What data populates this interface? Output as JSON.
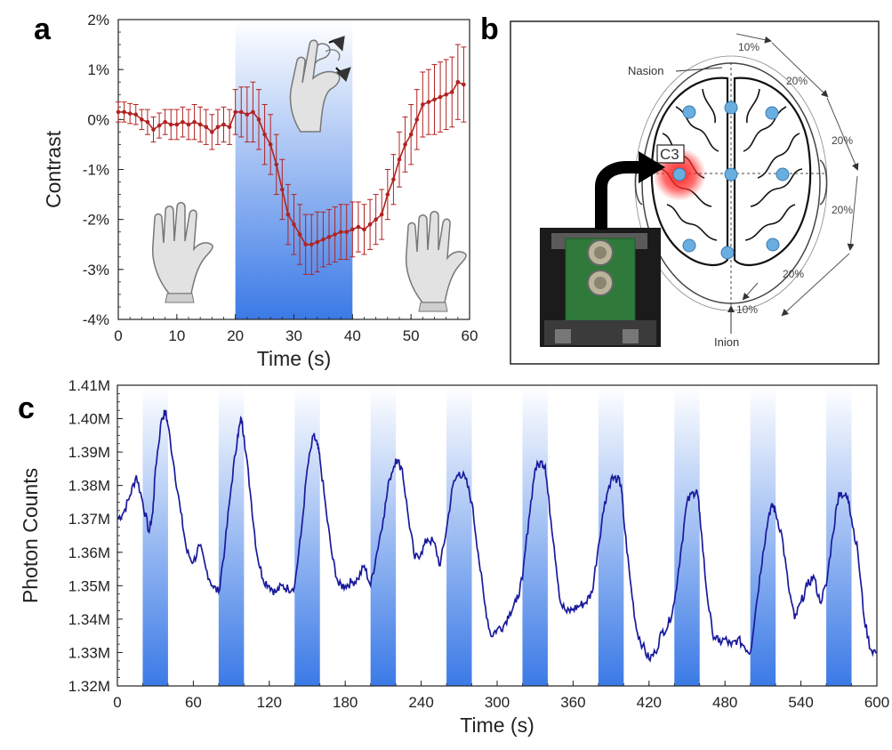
{
  "panels": {
    "a": "a",
    "b": "b",
    "c": "c"
  },
  "chart_data": [
    {
      "panel": "a",
      "type": "line",
      "xlabel": "Time (s)",
      "ylabel": "Contrast",
      "xlim": [
        0,
        60
      ],
      "ylim": [
        -4,
        2
      ],
      "x_ticks": [
        "0",
        "10",
        "20",
        "30",
        "40",
        "50",
        "60"
      ],
      "y_ticks": [
        "2%",
        "1%",
        "0%",
        "-1%",
        "-2%",
        "-3%",
        "-4%"
      ],
      "shaded_interval": [
        20,
        40
      ],
      "error_bars": true,
      "color": "#b22222",
      "series": [
        {
          "x": [
            0,
            1,
            2,
            3,
            4,
            5,
            6,
            7,
            8,
            9,
            10,
            11,
            12,
            13,
            14,
            15,
            16,
            17,
            18,
            19,
            20,
            21,
            22,
            23,
            24,
            25,
            26,
            27,
            28,
            29,
            30,
            31,
            32,
            33,
            34,
            35,
            36,
            37,
            38,
            39,
            40,
            41,
            42,
            43,
            44,
            45,
            46,
            47,
            48,
            49,
            50,
            51,
            52,
            53,
            54,
            55,
            56,
            57,
            58,
            59
          ],
          "y": [
            0.15,
            0.15,
            0.12,
            0.1,
            0.0,
            -0.05,
            -0.2,
            -0.12,
            -0.05,
            -0.1,
            -0.1,
            -0.05,
            -0.1,
            -0.05,
            -0.1,
            -0.15,
            -0.25,
            -0.15,
            -0.1,
            -0.15,
            0.15,
            0.15,
            0.1,
            0.15,
            0.0,
            -0.3,
            -0.5,
            -0.9,
            -1.4,
            -1.9,
            -2.1,
            -2.3,
            -2.5,
            -2.5,
            -2.45,
            -2.4,
            -2.35,
            -2.3,
            -2.25,
            -2.25,
            -2.2,
            -2.15,
            -2.2,
            -2.1,
            -2.0,
            -1.9,
            -1.5,
            -1.2,
            -0.8,
            -0.5,
            -0.3,
            0.0,
            0.3,
            0.35,
            0.4,
            0.45,
            0.5,
            0.55,
            0.75,
            0.7
          ],
          "err": [
            0.2,
            0.2,
            0.2,
            0.2,
            0.2,
            0.25,
            0.25,
            0.25,
            0.25,
            0.3,
            0.3,
            0.3,
            0.3,
            0.35,
            0.35,
            0.35,
            0.35,
            0.35,
            0.35,
            0.35,
            0.45,
            0.5,
            0.55,
            0.6,
            0.6,
            0.6,
            0.6,
            0.6,
            0.6,
            0.6,
            0.6,
            0.6,
            0.6,
            0.6,
            0.6,
            0.55,
            0.55,
            0.55,
            0.55,
            0.55,
            0.55,
            0.5,
            0.5,
            0.5,
            0.5,
            0.5,
            0.5,
            0.5,
            0.55,
            0.55,
            0.6,
            0.6,
            0.65,
            0.65,
            0.7,
            0.7,
            0.7,
            0.7,
            0.75,
            0.75
          ]
        }
      ]
    },
    {
      "panel": "c",
      "type": "line",
      "xlabel": "Time (s)",
      "ylabel": "Photon Counts",
      "xlim": [
        0,
        600
      ],
      "ylim": [
        1.32,
        1.41
      ],
      "x_ticks": [
        "0",
        "60",
        "120",
        "180",
        "240",
        "300",
        "360",
        "420",
        "480",
        "540",
        "600"
      ],
      "y_ticks": [
        "1.41M",
        "1.40M",
        "1.39M",
        "1.38M",
        "1.37M",
        "1.36M",
        "1.35M",
        "1.34M",
        "1.33M",
        "1.32M"
      ],
      "shaded_intervals": [
        [
          20,
          40
        ],
        [
          80,
          100
        ],
        [
          140,
          160
        ],
        [
          200,
          220
        ],
        [
          260,
          280
        ],
        [
          320,
          340
        ],
        [
          380,
          400
        ],
        [
          440,
          460
        ],
        [
          500,
          520
        ],
        [
          560,
          580
        ]
      ],
      "color": "#1a1a9c",
      "series": [
        {
          "x": [
            0,
            5,
            10,
            15,
            20,
            25,
            28,
            30,
            35,
            38,
            40,
            45,
            50,
            55,
            60,
            65,
            70,
            75,
            80,
            85,
            90,
            95,
            98,
            100,
            105,
            110,
            115,
            120,
            125,
            130,
            135,
            140,
            145,
            150,
            155,
            158,
            160,
            165,
            170,
            175,
            180,
            185,
            190,
            195,
            200,
            205,
            210,
            215,
            220,
            225,
            230,
            235,
            240,
            245,
            250,
            255,
            260,
            265,
            270,
            275,
            280,
            285,
            290,
            295,
            300,
            305,
            310,
            315,
            320,
            325,
            330,
            335,
            338,
            340,
            345,
            350,
            355,
            360,
            365,
            370,
            375,
            380,
            385,
            390,
            395,
            398,
            400,
            405,
            410,
            415,
            420,
            425,
            430,
            435,
            440,
            445,
            450,
            455,
            458,
            460,
            465,
            470,
            475,
            480,
            485,
            490,
            495,
            500,
            505,
            510,
            515,
            518,
            520,
            525,
            530,
            535,
            540,
            545,
            550,
            555,
            560,
            565,
            570,
            575,
            578,
            580,
            585,
            590,
            595,
            600
          ],
          "y": [
            1.37,
            1.372,
            1.377,
            1.383,
            1.375,
            1.366,
            1.372,
            1.385,
            1.4,
            1.402,
            1.398,
            1.385,
            1.372,
            1.36,
            1.357,
            1.362,
            1.355,
            1.35,
            1.348,
            1.362,
            1.38,
            1.395,
            1.4,
            1.395,
            1.378,
            1.36,
            1.352,
            1.35,
            1.348,
            1.35,
            1.349,
            1.35,
            1.365,
            1.385,
            1.395,
            1.392,
            1.388,
            1.372,
            1.358,
            1.35,
            1.35,
            1.351,
            1.352,
            1.356,
            1.35,
            1.36,
            1.37,
            1.382,
            1.388,
            1.385,
            1.37,
            1.358,
            1.36,
            1.364,
            1.363,
            1.356,
            1.367,
            1.38,
            1.384,
            1.382,
            1.375,
            1.36,
            1.345,
            1.335,
            1.337,
            1.338,
            1.342,
            1.345,
            1.352,
            1.37,
            1.385,
            1.387,
            1.386,
            1.378,
            1.362,
            1.345,
            1.342,
            1.343,
            1.344,
            1.345,
            1.348,
            1.362,
            1.375,
            1.382,
            1.382,
            1.38,
            1.37,
            1.352,
            1.337,
            1.332,
            1.328,
            1.33,
            1.336,
            1.338,
            1.345,
            1.36,
            1.375,
            1.378,
            1.378,
            1.372,
            1.35,
            1.336,
            1.333,
            1.334,
            1.332,
            1.334,
            1.332,
            1.33,
            1.345,
            1.36,
            1.372,
            1.374,
            1.372,
            1.365,
            1.35,
            1.34,
            1.345,
            1.35,
            1.353,
            1.345,
            1.35,
            1.365,
            1.378,
            1.377,
            1.375,
            1.37,
            1.36,
            1.34,
            1.331,
            1.33
          ]
        }
      ]
    }
  ],
  "brain": {
    "labels": {
      "nasion": "Nasion",
      "inion": "Inion",
      "c3": "C3"
    },
    "percent_labels": [
      "10%",
      "20%",
      "20%",
      "20%",
      "20%",
      "10%"
    ],
    "electrode_color": "#6aaee0",
    "hotspot_color": "#ff2020",
    "electrodes": [
      "Fp1",
      "Fz",
      "F4",
      "C3",
      "Cz",
      "C4",
      "P3",
      "Pz",
      "P4"
    ]
  }
}
